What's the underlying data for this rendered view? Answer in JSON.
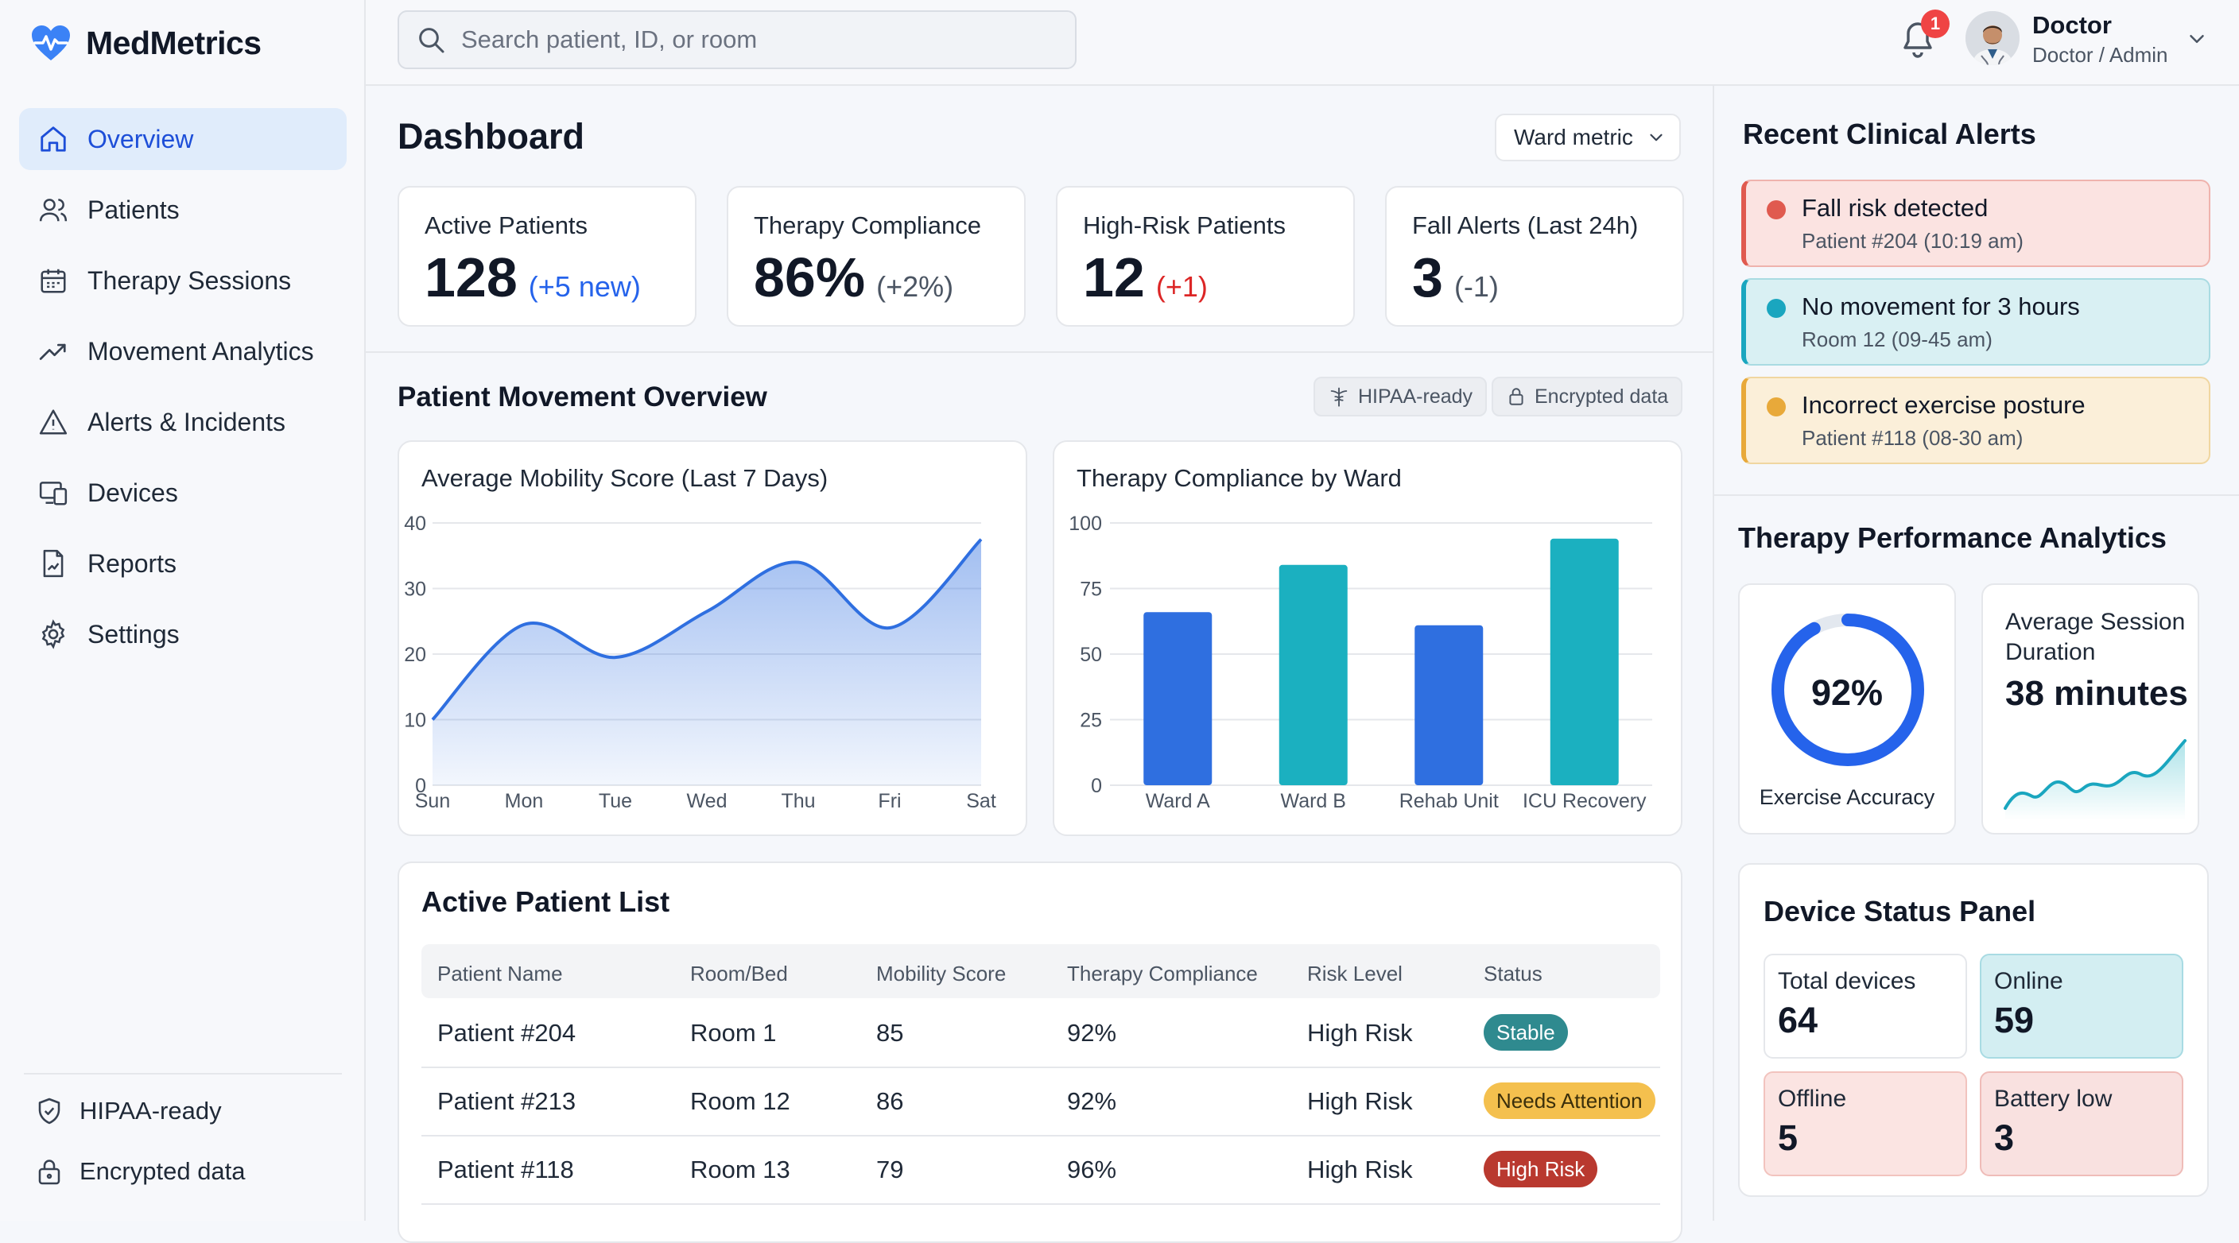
{
  "brand": {
    "name": "MedMetrics"
  },
  "sidebar": {
    "items": [
      {
        "label": "Overview",
        "icon": "home-icon",
        "active": true
      },
      {
        "label": "Patients",
        "icon": "users-icon"
      },
      {
        "label": "Therapy Sessions",
        "icon": "calendar-icon"
      },
      {
        "label": "Movement Analytics",
        "icon": "trend-icon"
      },
      {
        "label": "Alerts & Incidents",
        "icon": "warning-icon"
      },
      {
        "label": "Devices",
        "icon": "devices-icon"
      },
      {
        "label": "Reports",
        "icon": "report-icon"
      },
      {
        "label": "Settings",
        "icon": "gear-icon"
      }
    ],
    "footer": {
      "hipaa": "HIPAA-ready",
      "encrypted": "Encrypted data"
    }
  },
  "topbar": {
    "search_placeholder": "Search patient, ID, or room",
    "notification_count": "1",
    "user_name": "Doctor",
    "user_role": "Doctor / Admin"
  },
  "dashboard": {
    "title": "Dashboard",
    "ward_select": "Ward metric",
    "kpis": [
      {
        "label": "Active Patients",
        "value": "128",
        "delta": "(+5 new)",
        "delta_color": "#2563eb"
      },
      {
        "label": "Therapy Compliance",
        "value": "86%",
        "delta": "(+2%)",
        "delta_color": "#4b5563"
      },
      {
        "label": "High-Risk Patients",
        "value": "12",
        "delta": "(+1)",
        "delta_color": "#dc2626"
      },
      {
        "label": "Fall Alerts (Last 24h)",
        "value": "3",
        "delta": "(-1)",
        "delta_color": "#4b5563"
      }
    ]
  },
  "movement": {
    "title": "Patient Movement Overview",
    "chips": {
      "hipaa": "HIPAA-ready",
      "encrypted": "Encrypted data"
    }
  },
  "chart_data": [
    {
      "type": "area",
      "title": "Average Mobility Score (Last 7 Days)",
      "categories": [
        "Sun",
        "Mon",
        "Tue",
        "Wed",
        "Thu",
        "Fri",
        "Sat"
      ],
      "values": [
        10,
        24.5,
        19.5,
        26.5,
        34,
        24,
        37.5
      ],
      "ylim": [
        0,
        40
      ],
      "yticks": [
        0,
        10,
        20,
        30,
        40
      ],
      "color": "#2f6fe0",
      "grid": true
    },
    {
      "type": "bar",
      "title": "Therapy Compliance by Ward",
      "categories": [
        "Ward A",
        "Ward B",
        "Rehab Unit",
        "ICU Recovery"
      ],
      "values": [
        66,
        84,
        61,
        94
      ],
      "colors": [
        "#2f6fe0",
        "#1bb0c0",
        "#2f6fe0",
        "#1bb0c0"
      ],
      "ylim": [
        0,
        100
      ],
      "yticks": [
        0,
        25,
        50,
        75,
        100
      ],
      "grid": true
    }
  ],
  "patients": {
    "title": "Active Patient List",
    "columns": [
      "Patient Name",
      "Room/Bed",
      "Mobility Score",
      "Therapy Compliance",
      "Risk Level",
      "Status"
    ],
    "rows": [
      {
        "name": "Patient #204",
        "room": "Room 1",
        "mobility": "85",
        "compliance": "92%",
        "risk": "High Risk",
        "status": "Stable",
        "status_bg": "#2f8a8f",
        "status_fg": "#ffffff"
      },
      {
        "name": "Patient #213",
        "room": "Room 12",
        "mobility": "86",
        "compliance": "92%",
        "risk": "High Risk",
        "status": "Needs Attention",
        "status_bg": "#f4c04e",
        "status_fg": "#3b2f0b"
      },
      {
        "name": "Patient #118",
        "room": "Room 13",
        "mobility": "79",
        "compliance": "96%",
        "risk": "High Risk",
        "status": "High Risk",
        "status_bg": "#b9392f",
        "status_fg": "#ffffff"
      }
    ]
  },
  "alerts": {
    "title": "Recent Clinical Alerts",
    "items": [
      {
        "title": "Fall risk detected",
        "sub": "Patient #204 (10:19 am)",
        "bg": "#fbe3e1",
        "border": "#efb3ad",
        "accent": "#e05a4f"
      },
      {
        "title": "No movement for 3 hours",
        "sub": "Room 12 (09-45 am)",
        "bg": "#d9f0f3",
        "border": "#a9dbe2",
        "accent": "#1aa6bf"
      },
      {
        "title": "Incorrect exercise posture",
        "sub": "Patient #118 (08-30 am)",
        "bg": "#fbefd9",
        "border": "#f0d6a0",
        "accent": "#e8a93a"
      }
    ]
  },
  "performance": {
    "title": "Therapy Performance Analytics",
    "accuracy_value": "92%",
    "accuracy_fraction": 0.92,
    "accuracy_label": "Exercise Accuracy",
    "duration_label": "Average Session Duration",
    "duration_value": "38 minutes"
  },
  "devices": {
    "title": "Device Status Panel",
    "total_label": "Total devices",
    "total": "64",
    "online_label": "Online",
    "online": "59",
    "offline_label": "Offline",
    "offline": "5",
    "battery_label": "Battery low",
    "battery": "3"
  }
}
